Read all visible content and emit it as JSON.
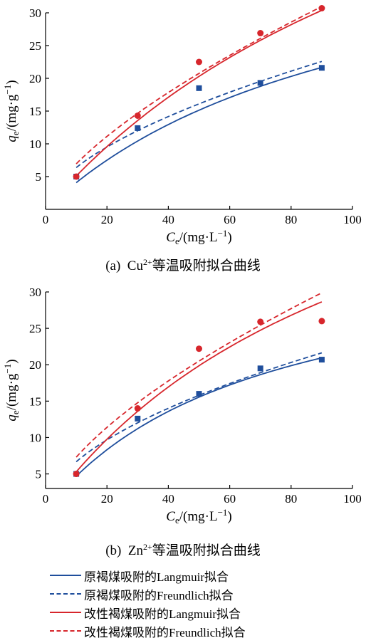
{
  "colors": {
    "blue": "#1f4e9c",
    "red": "#d7262c",
    "axis": "#000000"
  },
  "chart_data": [
    {
      "type": "line",
      "panel": "a",
      "caption": {
        "label": "(a)",
        "ion_base": "Cu",
        "ion_sup": "2+",
        "text": "等温吸附拟合曲线"
      },
      "xlabel": {
        "var": "C",
        "sub": "e",
        "unit": "/(mg·L",
        "sup": "−1",
        "close": ")"
      },
      "ylabel": {
        "var": "q",
        "sub": "e",
        "unit": "/(mg·g",
        "sup": "−1",
        "close": ")"
      },
      "xlim": [
        0,
        100
      ],
      "ylim": [
        0,
        30
      ],
      "xticks": [
        0,
        20,
        40,
        60,
        80,
        100
      ],
      "yticks": [
        5,
        10,
        15,
        20,
        25,
        30
      ],
      "points": [
        {
          "series": "原褐煤",
          "marker": "square",
          "color": "#1f4e9c",
          "x": [
            10,
            30,
            50,
            70,
            90
          ],
          "y": [
            5.0,
            12.4,
            18.5,
            19.3,
            21.6
          ]
        },
        {
          "series": "改性褐煤",
          "marker": "circle",
          "color": "#d7262c",
          "x": [
            10,
            30,
            50,
            70,
            90
          ],
          "y": [
            5.0,
            14.3,
            22.5,
            26.9,
            30.7
          ]
        }
      ],
      "series": [
        {
          "name": "原褐煤吸附的Langmuir拟合",
          "model": "langmuir",
          "qm": 47.0,
          "kl": 0.0095,
          "color": "#1f4e9c",
          "dash": false
        },
        {
          "name": "原褐煤吸附的Freundlich拟合",
          "model": "freundlich",
          "kf": 1.7,
          "n": 1.74,
          "color": "#1f4e9c",
          "dash": true
        },
        {
          "name": "改性褐煤吸附的Langmuir拟合",
          "model": "langmuir",
          "qm": 80.0,
          "kl": 0.0068,
          "color": "#d7262c",
          "dash": false
        },
        {
          "name": "改性褐煤吸附的Freundlich拟合",
          "model": "freundlich",
          "kf": 1.45,
          "n": 1.47,
          "color": "#d7262c",
          "dash": true
        }
      ]
    },
    {
      "type": "line",
      "panel": "b",
      "caption": {
        "label": "(b)",
        "ion_base": "Zn",
        "ion_sup": "2+",
        "text": "等温吸附拟合曲线"
      },
      "xlabel": {
        "var": "C",
        "sub": "e",
        "unit": "/(mg·L",
        "sup": "−1",
        "close": ")"
      },
      "ylabel": {
        "var": "q",
        "sub": "e",
        "unit": "/(mg·g",
        "sup": "−1",
        "close": ")"
      },
      "xlim": [
        0,
        100
      ],
      "ylim": [
        3,
        30
      ],
      "xticks": [
        0,
        20,
        40,
        60,
        80,
        100
      ],
      "yticks": [
        5,
        10,
        15,
        20,
        25,
        30
      ],
      "points": [
        {
          "series": "原褐煤",
          "marker": "square",
          "color": "#1f4e9c",
          "x": [
            10,
            30,
            50,
            70,
            90
          ],
          "y": [
            5.0,
            12.6,
            16.0,
            19.5,
            20.7
          ]
        },
        {
          "series": "改性褐煤",
          "marker": "circle",
          "color": "#d7262c",
          "x": [
            10,
            30,
            50,
            70,
            90
          ],
          "y": [
            5.0,
            14.0,
            22.2,
            25.9,
            26.0
          ]
        }
      ],
      "series": [
        {
          "name": "原褐煤吸附的Langmuir拟合",
          "model": "langmuir",
          "qm": 37.0,
          "kl": 0.0145,
          "color": "#1f4e9c",
          "dash": false
        },
        {
          "name": "原褐煤吸附的Freundlich拟合",
          "model": "freundlich",
          "kf": 1.95,
          "n": 1.87,
          "color": "#1f4e9c",
          "dash": true
        },
        {
          "name": "改性褐煤吸附的Langmuir拟合",
          "model": "langmuir",
          "qm": 64.0,
          "kl": 0.009,
          "color": "#d7262c",
          "dash": false
        },
        {
          "name": "改性褐煤吸附的Freundlich拟合",
          "model": "freundlich",
          "kf": 1.67,
          "n": 1.56,
          "color": "#d7262c",
          "dash": true
        }
      ]
    }
  ],
  "legend": [
    {
      "label": "原褐煤吸附的Langmuir拟合",
      "color": "#1f4e9c",
      "dash": false
    },
    {
      "label": "原褐煤吸附的Freundlich拟合",
      "color": "#1f4e9c",
      "dash": true
    },
    {
      "label": "改性褐煤吸附的Langmuir拟合",
      "color": "#d7262c",
      "dash": false
    },
    {
      "label": "改性褐煤吸附的Freundlich拟合",
      "color": "#d7262c",
      "dash": true
    }
  ]
}
